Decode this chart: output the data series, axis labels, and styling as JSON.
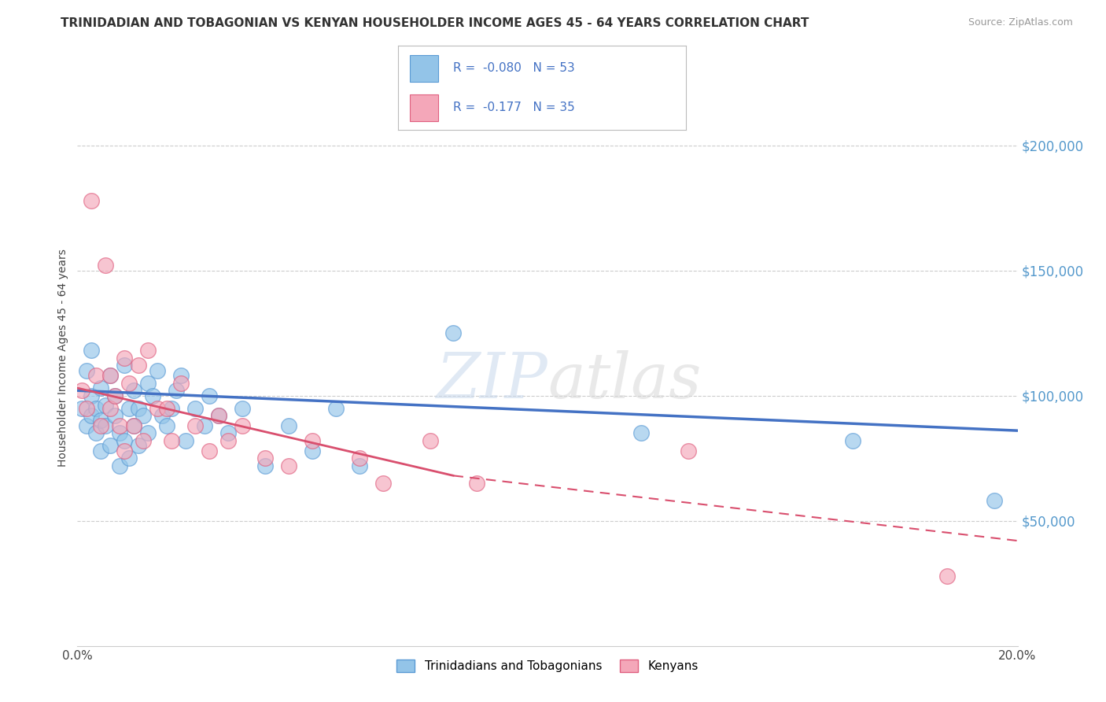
{
  "title": "TRINIDADIAN AND TOBAGONIAN VS KENYAN HOUSEHOLDER INCOME AGES 45 - 64 YEARS CORRELATION CHART",
  "source": "Source: ZipAtlas.com",
  "ylabel": "Householder Income Ages 45 - 64 years",
  "xlim": [
    0.0,
    0.2
  ],
  "ylim": [
    0,
    230000
  ],
  "ytick_vals": [
    50000,
    100000,
    150000,
    200000
  ],
  "ytick_labels": [
    "$50,000",
    "$100,000",
    "$150,000",
    "$200,000"
  ],
  "xticks": [
    0.0,
    0.05,
    0.1,
    0.15,
    0.2
  ],
  "xtick_labels": [
    "0.0%",
    "",
    "",
    "",
    "20.0%"
  ],
  "watermark_part1": "ZIP",
  "watermark_part2": "atlas",
  "series1_name": "Trinidadians and Tobagonians",
  "series2_name": "Kenyans",
  "color1": "#93c4e8",
  "color2": "#f4a7b9",
  "edge_color1": "#5b9bd5",
  "edge_color2": "#e06080",
  "line_color1": "#4472c4",
  "line_color2": "#d94f6e",
  "background_color": "#ffffff",
  "grid_color": "#cccccc",
  "legend_label1": "R =  -0.080   N = 53",
  "legend_label2": "R =  -0.177   N = 35",
  "scatter1_x": [
    0.001,
    0.002,
    0.002,
    0.003,
    0.003,
    0.003,
    0.004,
    0.004,
    0.005,
    0.005,
    0.005,
    0.006,
    0.006,
    0.007,
    0.007,
    0.008,
    0.008,
    0.009,
    0.009,
    0.01,
    0.01,
    0.011,
    0.011,
    0.012,
    0.012,
    0.013,
    0.013,
    0.014,
    0.015,
    0.015,
    0.016,
    0.017,
    0.018,
    0.019,
    0.02,
    0.021,
    0.022,
    0.023,
    0.025,
    0.027,
    0.028,
    0.03,
    0.032,
    0.035,
    0.04,
    0.045,
    0.05,
    0.055,
    0.06,
    0.08,
    0.12,
    0.165,
    0.195
  ],
  "scatter1_y": [
    95000,
    110000,
    88000,
    100000,
    92000,
    118000,
    95000,
    85000,
    103000,
    90000,
    78000,
    96000,
    88000,
    108000,
    80000,
    100000,
    92000,
    85000,
    72000,
    112000,
    82000,
    95000,
    75000,
    102000,
    88000,
    95000,
    80000,
    92000,
    105000,
    85000,
    100000,
    110000,
    92000,
    88000,
    95000,
    102000,
    108000,
    82000,
    95000,
    88000,
    100000,
    92000,
    85000,
    95000,
    72000,
    88000,
    78000,
    95000,
    72000,
    125000,
    85000,
    82000,
    58000
  ],
  "scatter2_x": [
    0.001,
    0.002,
    0.003,
    0.004,
    0.005,
    0.006,
    0.007,
    0.007,
    0.008,
    0.009,
    0.01,
    0.01,
    0.011,
    0.012,
    0.013,
    0.014,
    0.015,
    0.017,
    0.019,
    0.02,
    0.022,
    0.025,
    0.028,
    0.03,
    0.032,
    0.035,
    0.04,
    0.045,
    0.05,
    0.06,
    0.065,
    0.075,
    0.085,
    0.13,
    0.185
  ],
  "scatter2_y": [
    102000,
    95000,
    178000,
    108000,
    88000,
    152000,
    108000,
    95000,
    100000,
    88000,
    115000,
    78000,
    105000,
    88000,
    112000,
    82000,
    118000,
    95000,
    95000,
    82000,
    105000,
    88000,
    78000,
    92000,
    82000,
    88000,
    75000,
    72000,
    82000,
    75000,
    65000,
    82000,
    65000,
    78000,
    28000
  ],
  "line1_x0": 0.0,
  "line1_y0": 102000,
  "line1_x1": 0.2,
  "line1_y1": 86000,
  "line2_solid_x0": 0.0,
  "line2_solid_y0": 103000,
  "line2_solid_x1": 0.08,
  "line2_solid_y1": 68000,
  "line2_dash_x0": 0.08,
  "line2_dash_y0": 68000,
  "line2_dash_x1": 0.2,
  "line2_dash_y1": 42000
}
